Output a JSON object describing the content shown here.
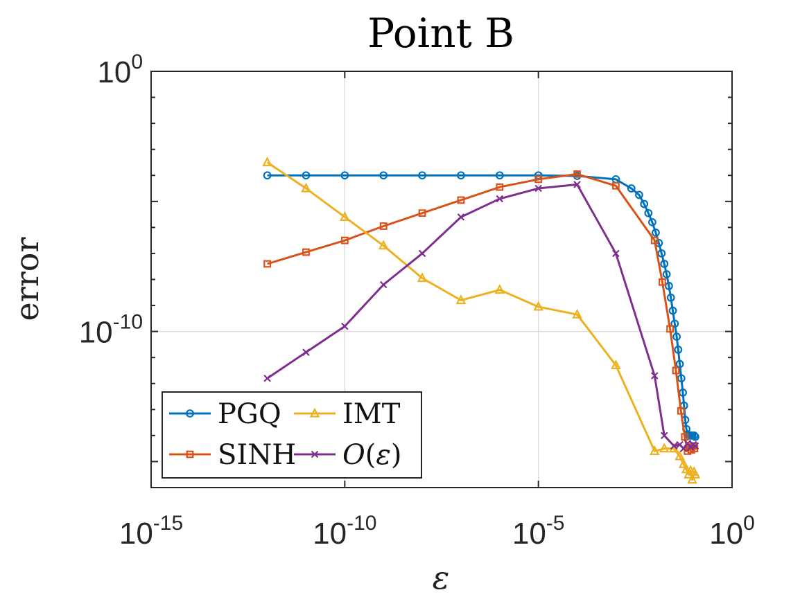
{
  "chart_data": {
    "type": "line",
    "title": "Point B",
    "xlabel": "ε",
    "ylabel": "error",
    "xscale": "log",
    "yscale": "log",
    "xlim_log10": [
      -15,
      0
    ],
    "ylim_log10": [
      -16,
      0
    ],
    "xticks": [
      {
        "base": "10",
        "exp": "-15",
        "value": -15
      },
      {
        "base": "10",
        "exp": "-10",
        "value": -10
      },
      {
        "base": "10",
        "exp": "-5",
        "value": -5
      },
      {
        "base": "10",
        "exp": "0",
        "value": 0
      }
    ],
    "yticks": [
      {
        "base": "10",
        "exp": "0",
        "value": 0
      },
      {
        "base": "10",
        "exp": "-10",
        "value": -10
      }
    ],
    "grid": true,
    "legend": {
      "position": "bottom-left",
      "entries": [
        {
          "label": "PGQ",
          "series": "PGQ"
        },
        {
          "label": "IMT",
          "series": "IMT"
        },
        {
          "label": "SINH",
          "series": "SINH"
        },
        {
          "label_prefix": "O(",
          "label_symbol": "ε",
          "label_suffix": ")",
          "series": "O(eps)"
        }
      ]
    },
    "series": [
      {
        "name": "PGQ",
        "color": "#0072BD",
        "marker": "circle",
        "points": [
          [
            -12,
            -4
          ],
          [
            -11,
            -4
          ],
          [
            -10,
            -4
          ],
          [
            -9,
            -4
          ],
          [
            -8,
            -4
          ],
          [
            -7,
            -4
          ],
          [
            -6,
            -4
          ],
          [
            -5,
            -4
          ],
          [
            -4,
            -4.02
          ],
          [
            -3,
            -4.15
          ],
          [
            -2.6,
            -4.5
          ],
          [
            -2.4,
            -4.75
          ],
          [
            -2.27,
            -5.1
          ],
          [
            -2.16,
            -5.45
          ],
          [
            -2.06,
            -5.8
          ],
          [
            -1.97,
            -6.2
          ],
          [
            -1.89,
            -6.6
          ],
          [
            -1.82,
            -7.0
          ],
          [
            -1.75,
            -7.4
          ],
          [
            -1.69,
            -7.8
          ],
          [
            -1.63,
            -8.25
          ],
          [
            -1.58,
            -8.7
          ],
          [
            -1.53,
            -9.2
          ],
          [
            -1.48,
            -9.7
          ],
          [
            -1.43,
            -10.2
          ],
          [
            -1.39,
            -10.7
          ],
          [
            -1.35,
            -11.25
          ],
          [
            -1.31,
            -11.8
          ],
          [
            -1.27,
            -12.35
          ],
          [
            -1.24,
            -12.85
          ],
          [
            -1.21,
            -13.4
          ],
          [
            -1.18,
            -13.75
          ],
          [
            -1.15,
            -13.95
          ],
          [
            -1.11,
            -14.0
          ],
          [
            -1.07,
            -14.0
          ],
          [
            -1.03,
            -14.0
          ],
          [
            -0.98,
            -14.0
          ],
          [
            -0.95,
            -14.05
          ]
        ]
      },
      {
        "name": "SINH",
        "color": "#D95319",
        "marker": "square",
        "points": [
          [
            -12,
            -7.4
          ],
          [
            -11,
            -6.95
          ],
          [
            -10,
            -6.5
          ],
          [
            -9,
            -5.95
          ],
          [
            -8,
            -5.45
          ],
          [
            -7,
            -4.95
          ],
          [
            -6,
            -4.45
          ],
          [
            -5,
            -4.15
          ],
          [
            -4,
            -3.95
          ],
          [
            -3,
            -4.4
          ],
          [
            -2,
            -6.5
          ],
          [
            -1.8,
            -8.1
          ],
          [
            -1.6,
            -9.9
          ],
          [
            -1.45,
            -11.5
          ],
          [
            -1.32,
            -13.05
          ],
          [
            -1.22,
            -14.05
          ],
          [
            -1.15,
            -14.6
          ],
          [
            -1.1,
            -14.45
          ],
          [
            -1.05,
            -14.55
          ],
          [
            -1.0,
            -14.4
          ],
          [
            -0.97,
            -14.5
          ]
        ]
      },
      {
        "name": "IMT",
        "color": "#EDB120",
        "marker": "triangle",
        "points": [
          [
            -12,
            -3.5
          ],
          [
            -11,
            -4.5
          ],
          [
            -10,
            -5.6
          ],
          [
            -9,
            -6.7
          ],
          [
            -8,
            -7.95
          ],
          [
            -7,
            -8.8
          ],
          [
            -6,
            -8.4
          ],
          [
            -5,
            -9.05
          ],
          [
            -4,
            -9.35
          ],
          [
            -3,
            -11.3
          ],
          [
            -2,
            -14.6
          ],
          [
            -1.75,
            -14.5
          ],
          [
            -1.5,
            -14.5
          ],
          [
            -1.35,
            -14.8
          ],
          [
            -1.25,
            -15.1
          ],
          [
            -1.18,
            -15.3
          ],
          [
            -1.12,
            -15.5
          ],
          [
            -1.07,
            -15.35
          ],
          [
            -1.03,
            -15.7
          ],
          [
            -0.98,
            -15.4
          ],
          [
            -0.95,
            -15.5
          ]
        ]
      },
      {
        "name": "O(eps)",
        "color": "#7E2F8E",
        "marker": "x",
        "points": [
          [
            -12,
            -11.8
          ],
          [
            -11,
            -10.8
          ],
          [
            -10,
            -9.8
          ],
          [
            -9,
            -8.2
          ],
          [
            -8,
            -7.0
          ],
          [
            -7,
            -5.6
          ],
          [
            -6,
            -4.9
          ],
          [
            -5,
            -4.5
          ],
          [
            -4,
            -4.35
          ],
          [
            -3,
            -7.0
          ],
          [
            -2,
            -11.7
          ],
          [
            -1.75,
            -14.0
          ],
          [
            -1.5,
            -14.4
          ],
          [
            -1.35,
            -14.35
          ],
          [
            -1.25,
            -14.5
          ],
          [
            -1.15,
            -14.3
          ],
          [
            -1.07,
            -14.45
          ],
          [
            -1.0,
            -14.35
          ],
          [
            -0.95,
            -14.4
          ]
        ]
      }
    ]
  }
}
